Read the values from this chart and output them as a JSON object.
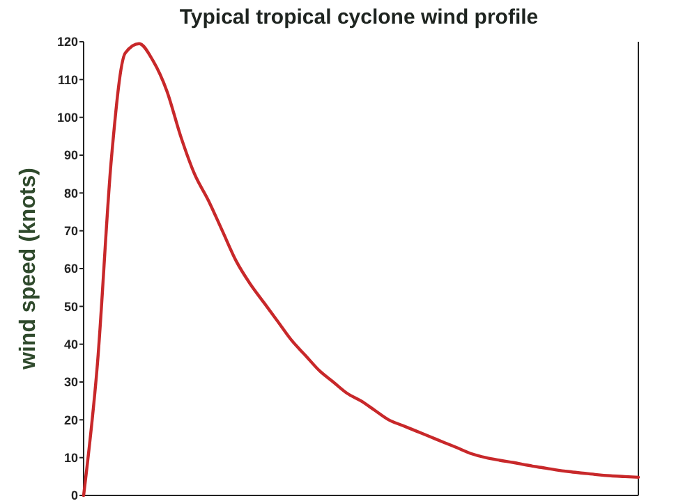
{
  "chart_data": {
    "type": "line",
    "title": "Typical tropical cyclone wind profile",
    "ylabel": "wind speed (knots)",
    "categories": [
      null,
      null,
      null,
      null,
      null,
      null,
      null,
      null,
      null,
      null,
      null,
      null,
      null,
      null,
      null,
      null,
      null,
      null,
      null,
      null,
      null,
      null,
      null,
      null,
      null,
      null,
      null,
      null,
      null,
      null,
      null,
      null,
      null,
      null,
      null,
      null,
      null,
      null,
      null,
      null,
      null
    ],
    "series": [
      {
        "color": "#c8282a",
        "values": [
          0,
          35,
          89,
          117,
          119.5,
          115,
          107,
          95,
          85,
          78,
          70,
          62,
          56,
          51,
          46,
          41,
          37,
          33,
          30,
          27,
          25,
          22.5,
          20,
          18.5,
          17,
          15.5,
          14,
          12.5,
          11,
          10,
          9.3,
          8.7,
          8,
          7.4,
          6.8,
          6.3,
          5.9,
          5.5,
          5.2,
          5,
          4.8
        ]
      }
    ],
    "ylim": [
      0,
      120
    ],
    "yticks": [
      0,
      10,
      20,
      30,
      40,
      50,
      60,
      70,
      80,
      90,
      100,
      110,
      120
    ],
    "grid": false,
    "marker": "none",
    "line_style": "solid"
  }
}
